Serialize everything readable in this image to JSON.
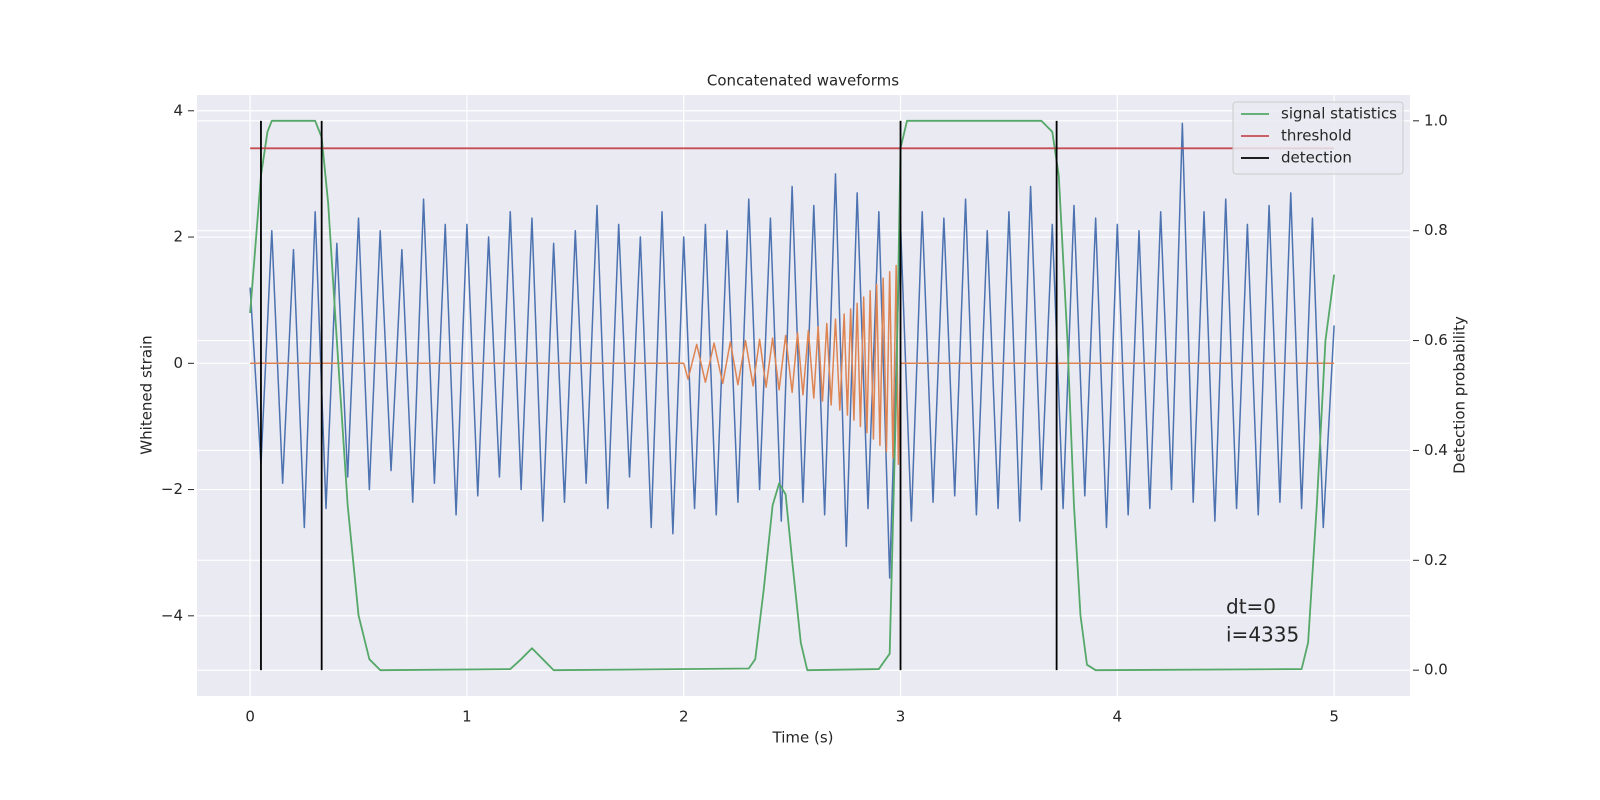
{
  "chart_data": {
    "type": "line",
    "title": "Concatenated waveforms",
    "x_label": "Time (s)",
    "y_label": "Whitened strain",
    "y2_label": "Detection probability",
    "annotations": [
      "dt=0",
      "i=4335"
    ],
    "grid": true,
    "legend": "upper right",
    "xlim": [
      -0.245,
      5.35
    ],
    "ylim": [
      -5.27,
      4.25
    ],
    "y2lim": [
      -0.047,
      1.047
    ],
    "xticks": [
      0,
      1,
      2,
      3,
      4,
      5
    ],
    "yticks": [
      {
        "value": -4,
        "label": "−4"
      },
      {
        "value": -2,
        "label": "−2"
      },
      0,
      2,
      4
    ],
    "y2ticks": [
      {
        "value": 0,
        "label": "0.0"
      },
      0.2,
      0.4,
      0.6,
      0.8,
      {
        "value": 1,
        "label": "1.0"
      }
    ],
    "series": [
      {
        "color": "#4c72b0",
        "x": [
          0,
          0.05,
          0.1,
          0.15,
          0.2,
          0.25,
          0.3,
          0.35,
          0.4,
          0.45,
          0.5,
          0.55,
          0.6,
          0.65,
          0.7,
          0.75,
          0.8,
          0.85,
          0.9,
          0.95,
          1,
          1.05,
          1.1,
          1.15,
          1.2,
          1.25,
          1.3,
          1.35,
          1.4,
          1.45,
          1.5,
          1.55,
          1.6,
          1.65,
          1.7,
          1.75,
          1.8,
          1.85,
          1.9,
          1.95,
          2,
          2.05,
          2.1,
          2.15,
          2.2,
          2.25,
          2.3,
          2.35,
          2.4,
          2.45,
          2.5,
          2.55,
          2.6,
          2.65,
          2.7,
          2.75,
          2.8,
          2.85,
          2.9,
          2.95,
          3,
          3.05,
          3.1,
          3.15,
          3.2,
          3.25,
          3.3,
          3.35,
          3.4,
          3.45,
          3.5,
          3.55,
          3.6,
          3.65,
          3.7,
          3.75,
          3.8,
          3.85,
          3.9,
          3.95,
          4,
          4.05,
          4.1,
          4.15,
          4.2,
          4.25,
          4.3,
          4.35,
          4.4,
          4.45,
          4.5,
          4.55,
          4.6,
          4.65,
          4.7,
          4.75,
          4.8,
          4.85,
          4.9,
          4.95,
          5
        ],
        "values": [
          1.2,
          -1.6,
          2.1,
          -1.9,
          1.8,
          -2.6,
          2.4,
          -2.3,
          1.9,
          -1.8,
          2.3,
          -2.0,
          2.1,
          -1.7,
          1.8,
          -2.2,
          2.6,
          -1.9,
          2.2,
          -2.4,
          2.2,
          -2.1,
          2.0,
          -1.8,
          2.4,
          -2.0,
          2.3,
          -2.5,
          1.9,
          -2.2,
          2.1,
          -1.9,
          2.5,
          -2.3,
          2.2,
          -1.8,
          2.0,
          -2.6,
          2.4,
          -2.7,
          2.0,
          -2.3,
          2.2,
          -2.4,
          2.1,
          -2.2,
          2.6,
          -2.0,
          2.3,
          -2.5,
          2.8,
          -2.2,
          2.5,
          -2.4,
          3.0,
          -2.9,
          2.7,
          -2.3,
          2.4,
          -3.4,
          2.2,
          -2.5,
          2.4,
          -2.2,
          2.3,
          -2.1,
          2.6,
          -2.4,
          2.1,
          -2.3,
          2.4,
          -2.5,
          2.8,
          -2.0,
          2.2,
          -2.3,
          2.5,
          -2.1,
          2.3,
          -2.6,
          2.2,
          -2.4,
          2.1,
          -2.3,
          2.4,
          -2.0,
          3.8,
          -2.2,
          2.4,
          -2.5,
          2.6,
          -2.3,
          2.2,
          -2.4,
          2.5,
          -2.2,
          2.7,
          -2.3,
          2.3,
          -2.6,
          0.6
        ]
      },
      {
        "color": "#dd8452",
        "x": [
          0,
          2.0,
          2.02,
          2.06,
          2.1,
          2.14,
          2.18,
          2.215,
          2.25,
          2.285,
          2.32,
          2.35,
          2.38,
          2.41,
          2.44,
          2.47,
          2.5,
          2.525,
          2.55,
          2.575,
          2.6,
          2.62,
          2.64,
          2.66,
          2.68,
          2.7,
          2.72,
          2.74,
          2.755,
          2.77,
          2.785,
          2.8,
          2.815,
          2.83,
          2.845,
          2.86,
          2.875,
          2.89,
          2.905,
          2.92,
          2.935,
          2.95,
          2.965,
          2.98,
          2.99,
          3.0,
          5.0
        ],
        "values": [
          0,
          0,
          -0.25,
          0.3,
          -0.3,
          0.32,
          -0.32,
          0.34,
          -0.34,
          0.36,
          -0.36,
          0.38,
          -0.38,
          0.4,
          -0.42,
          0.44,
          -0.46,
          0.48,
          -0.5,
          0.52,
          -0.55,
          0.58,
          -0.6,
          0.63,
          -0.66,
          0.7,
          -0.74,
          0.78,
          -0.82,
          0.86,
          -0.9,
          0.95,
          -1.0,
          1.05,
          -1.1,
          1.15,
          -1.2,
          1.25,
          -1.3,
          1.35,
          -1.4,
          1.45,
          -1.5,
          1.55,
          -1.6,
          0,
          0
        ]
      },
      {
        "name": "signal statistics",
        "color": "#55a868",
        "axis": "y2",
        "x": [
          0,
          0.05,
          0.08,
          0.1,
          0.3,
          0.33,
          0.36,
          0.4,
          0.45,
          0.5,
          0.55,
          0.6,
          1.2,
          1.25,
          1.3,
          1.35,
          1.4,
          2.3,
          2.33,
          2.37,
          2.41,
          2.44,
          2.47,
          2.5,
          2.54,
          2.57,
          2.9,
          2.95,
          2.98,
          3.0,
          3.03,
          3.65,
          3.7,
          3.73,
          3.77,
          3.8,
          3.83,
          3.86,
          3.9,
          4.85,
          4.88,
          4.92,
          4.96,
          5.0
        ],
        "values": [
          0.65,
          0.9,
          0.98,
          1.0,
          1.0,
          0.97,
          0.85,
          0.6,
          0.3,
          0.1,
          0.02,
          0,
          0.002,
          0.02,
          0.04,
          0.02,
          0,
          0.003,
          0.02,
          0.15,
          0.3,
          0.34,
          0.32,
          0.2,
          0.05,
          0,
          0.002,
          0.03,
          0.5,
          0.95,
          1.0,
          1.0,
          0.98,
          0.9,
          0.6,
          0.3,
          0.1,
          0.01,
          0,
          0.002,
          0.05,
          0.3,
          0.6,
          0.72
        ]
      },
      {
        "name": "threshold",
        "color": "#c44e52",
        "axis": "y2",
        "x": [
          0,
          5
        ],
        "values": [
          0.95,
          0.95
        ]
      },
      {
        "name": "detection",
        "color": "#000000",
        "axis": "y2",
        "x": [
          0.05,
          0.05,
          null,
          0.33,
          0.33,
          null,
          3.0,
          3.0,
          null,
          3.72,
          3.72
        ],
        "values": [
          0,
          1,
          null,
          0,
          1,
          null,
          0,
          1,
          null,
          0,
          1
        ]
      }
    ]
  }
}
